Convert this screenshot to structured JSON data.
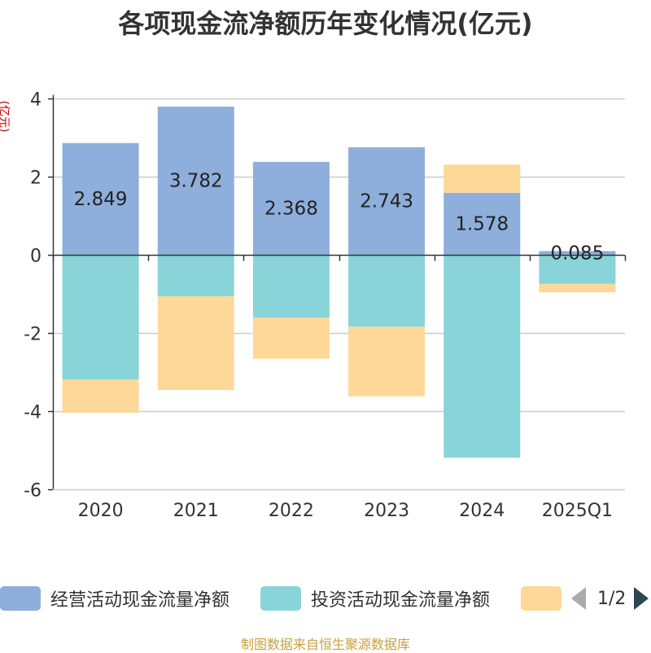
{
  "chart_data": {
    "type": "bar",
    "stacked": true,
    "title": "各项现金流净额历年变化情况(亿元)",
    "unit_label": "(亿元)",
    "categories": [
      "2020",
      "2021",
      "2022",
      "2023",
      "2024",
      "2025Q1"
    ],
    "ylim": [
      -6,
      4
    ],
    "yticks": [
      4,
      2,
      0,
      -2,
      -4,
      -6
    ],
    "grid": true,
    "legend_position": "bottom",
    "series": [
      {
        "name": "经营活动现金流量净额",
        "color": "#8eaedb",
        "values": [
          2.849,
          3.782,
          2.368,
          2.743,
          1.578,
          0.085
        ],
        "show_labels": true
      },
      {
        "name": "投资活动现金流量净额",
        "color": "#88d4d8",
        "values": [
          -3.2,
          -1.07,
          -1.62,
          -1.85,
          -5.2,
          -0.75
        ],
        "show_labels": false
      },
      {
        "name": "",
        "color": "#fed898",
        "values": [
          -0.85,
          -2.4,
          -1.05,
          -1.78,
          0.72,
          -0.22
        ],
        "show_labels": false
      }
    ]
  },
  "legend": {
    "page": "1/2"
  },
  "source": "制图数据来自恒生聚源数据库",
  "colors": {
    "grid": "#cccccc",
    "axis": "#333333",
    "label": "#222222"
  }
}
